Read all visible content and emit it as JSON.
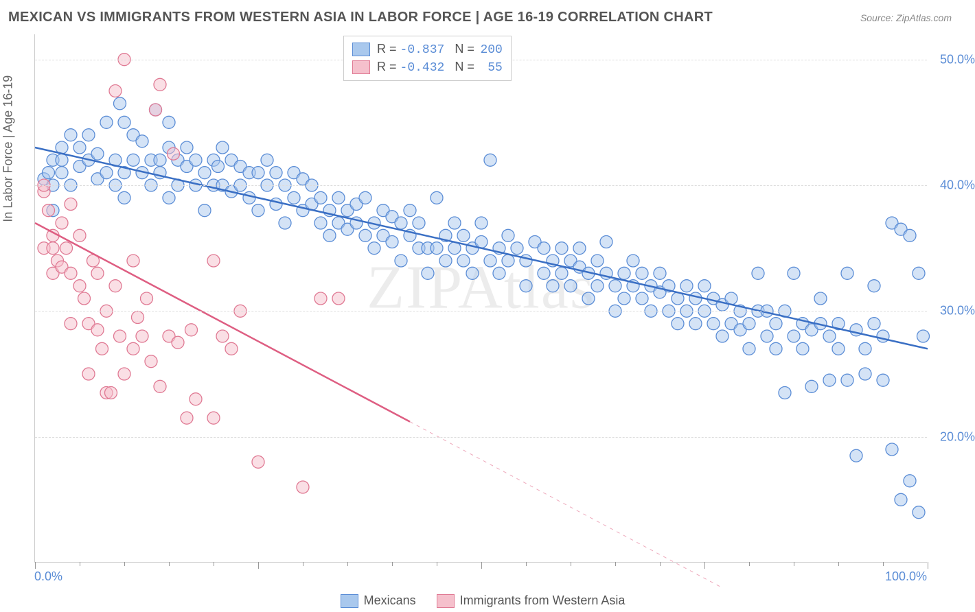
{
  "title": "MEXICAN VS IMMIGRANTS FROM WESTERN ASIA IN LABOR FORCE | AGE 16-19 CORRELATION CHART",
  "source": "Source: ZipAtlas.com",
  "watermark": "ZIPAtlas",
  "ylabel": "In Labor Force | Age 16-19",
  "chart": {
    "type": "scatter",
    "xlim": [
      0,
      100
    ],
    "ylim": [
      10,
      52
    ],
    "ytick_values": [
      20,
      30,
      40,
      50
    ],
    "ytick_labels": [
      "20.0%",
      "30.0%",
      "40.0%",
      "50.0%"
    ],
    "xaxis_left_label": "0.0%",
    "xaxis_right_label": "100.0%",
    "xtick_positions": [
      0,
      5,
      10,
      15,
      20,
      25,
      30,
      35,
      40,
      45,
      50,
      55,
      60,
      65,
      70,
      75,
      80,
      85,
      90,
      95,
      100
    ],
    "xtick_major": [
      0,
      25,
      50,
      75,
      100
    ],
    "background_color": "#ffffff",
    "grid_color": "#dddddd",
    "marker_radius": 9,
    "marker_opacity": 0.5,
    "line_width": 2.5,
    "series": [
      {
        "name": "Mexicans",
        "color_fill": "#a9c8ed",
        "color_stroke": "#5b8dd6",
        "line_color": "#3a6fc4",
        "R": "-0.837",
        "N": "200",
        "trend": {
          "x1": 0,
          "y1": 43.0,
          "x2": 100,
          "y2": 27.0
        },
        "points": [
          [
            1,
            40.5
          ],
          [
            1.5,
            41
          ],
          [
            2,
            42
          ],
          [
            2,
            40
          ],
          [
            2,
            38
          ],
          [
            3,
            43
          ],
          [
            3,
            41
          ],
          [
            3,
            42
          ],
          [
            4,
            44
          ],
          [
            4,
            40
          ],
          [
            5,
            41.5
          ],
          [
            5,
            43
          ],
          [
            6,
            42
          ],
          [
            6,
            44
          ],
          [
            7,
            42.5
          ],
          [
            7,
            40.5
          ],
          [
            8,
            41
          ],
          [
            8,
            45
          ],
          [
            9,
            42
          ],
          [
            9,
            40
          ],
          [
            9.5,
            46.5
          ],
          [
            10,
            41
          ],
          [
            10,
            45
          ],
          [
            10,
            39
          ],
          [
            11,
            42
          ],
          [
            11,
            44
          ],
          [
            12,
            41
          ],
          [
            12,
            43.5
          ],
          [
            13,
            42
          ],
          [
            13,
            40
          ],
          [
            13.5,
            46
          ],
          [
            14,
            42
          ],
          [
            14,
            41
          ],
          [
            15,
            43
          ],
          [
            15,
            39
          ],
          [
            15,
            45
          ],
          [
            16,
            42
          ],
          [
            16,
            40
          ],
          [
            17,
            41.5
          ],
          [
            17,
            43
          ],
          [
            18,
            40
          ],
          [
            18,
            42
          ],
          [
            19,
            41
          ],
          [
            19,
            38
          ],
          [
            20,
            42
          ],
          [
            20,
            40
          ],
          [
            20.5,
            41.5
          ],
          [
            21,
            40
          ],
          [
            21,
            43
          ],
          [
            22,
            42
          ],
          [
            22,
            39.5
          ],
          [
            23,
            40
          ],
          [
            23,
            41.5
          ],
          [
            24,
            39
          ],
          [
            24,
            41
          ],
          [
            25,
            41
          ],
          [
            25,
            38
          ],
          [
            26,
            40
          ],
          [
            26,
            42
          ],
          [
            27,
            38.5
          ],
          [
            27,
            41
          ],
          [
            28,
            40
          ],
          [
            28,
            37
          ],
          [
            29,
            39
          ],
          [
            29,
            41
          ],
          [
            30,
            38
          ],
          [
            30,
            40.5
          ],
          [
            31,
            38.5
          ],
          [
            31,
            40
          ],
          [
            32,
            37
          ],
          [
            32,
            39
          ],
          [
            33,
            38
          ],
          [
            33,
            36
          ],
          [
            34,
            39
          ],
          [
            34,
            37
          ],
          [
            35,
            38
          ],
          [
            35,
            36.5
          ],
          [
            36,
            38.5
          ],
          [
            36,
            37
          ],
          [
            37,
            36
          ],
          [
            37,
            39
          ],
          [
            38,
            37
          ],
          [
            38,
            35
          ],
          [
            39,
            38
          ],
          [
            39,
            36
          ],
          [
            40,
            37.5
          ],
          [
            40,
            35.5
          ],
          [
            41,
            37
          ],
          [
            41,
            34
          ],
          [
            42,
            36
          ],
          [
            42,
            38
          ],
          [
            43,
            35
          ],
          [
            43,
            37
          ],
          [
            44,
            35
          ],
          [
            44,
            33
          ],
          [
            45,
            39
          ],
          [
            45,
            35
          ],
          [
            46,
            36
          ],
          [
            46,
            34
          ],
          [
            47,
            35
          ],
          [
            47,
            37
          ],
          [
            48,
            34
          ],
          [
            48,
            36
          ],
          [
            49,
            35
          ],
          [
            49,
            33
          ],
          [
            50,
            35.5
          ],
          [
            50,
            37
          ],
          [
            51,
            34
          ],
          [
            51,
            42
          ],
          [
            52,
            35
          ],
          [
            52,
            33
          ],
          [
            53,
            36
          ],
          [
            53,
            34
          ],
          [
            54,
            35
          ],
          [
            55,
            34
          ],
          [
            55,
            32
          ],
          [
            56,
            35.5
          ],
          [
            57,
            33
          ],
          [
            57,
            35
          ],
          [
            58,
            34
          ],
          [
            58,
            32
          ],
          [
            59,
            35
          ],
          [
            59,
            33
          ],
          [
            60,
            34
          ],
          [
            60,
            32
          ],
          [
            61,
            33.5
          ],
          [
            61,
            35
          ],
          [
            62,
            33
          ],
          [
            62,
            31
          ],
          [
            63,
            34
          ],
          [
            63,
            32
          ],
          [
            64,
            33
          ],
          [
            64,
            35.5
          ],
          [
            65,
            32
          ],
          [
            65,
            30
          ],
          [
            66,
            33
          ],
          [
            66,
            31
          ],
          [
            67,
            32
          ],
          [
            67,
            34
          ],
          [
            68,
            31
          ],
          [
            68,
            33
          ],
          [
            69,
            32
          ],
          [
            69,
            30
          ],
          [
            70,
            31.5
          ],
          [
            70,
            33
          ],
          [
            71,
            30
          ],
          [
            71,
            32
          ],
          [
            72,
            31
          ],
          [
            72,
            29
          ],
          [
            73,
            32
          ],
          [
            73,
            30
          ],
          [
            74,
            31
          ],
          [
            74,
            29
          ],
          [
            75,
            30
          ],
          [
            75,
            32
          ],
          [
            76,
            29
          ],
          [
            76,
            31
          ],
          [
            77,
            30.5
          ],
          [
            77,
            28
          ],
          [
            78,
            29
          ],
          [
            78,
            31
          ],
          [
            79,
            28.5
          ],
          [
            79,
            30
          ],
          [
            80,
            29
          ],
          [
            80,
            27
          ],
          [
            81,
            30
          ],
          [
            81,
            33
          ],
          [
            82,
            28
          ],
          [
            82,
            30
          ],
          [
            83,
            29
          ],
          [
            83,
            27
          ],
          [
            84,
            30
          ],
          [
            84,
            23.5
          ],
          [
            85,
            28
          ],
          [
            85,
            33
          ],
          [
            86,
            27
          ],
          [
            86,
            29
          ],
          [
            87,
            28.5
          ],
          [
            87,
            24
          ],
          [
            88,
            29
          ],
          [
            88,
            31
          ],
          [
            89,
            24.5
          ],
          [
            89,
            28
          ],
          [
            90,
            27
          ],
          [
            90,
            29
          ],
          [
            91,
            24.5
          ],
          [
            91,
            33
          ],
          [
            92,
            28.5
          ],
          [
            92,
            18.5
          ],
          [
            93,
            27
          ],
          [
            93,
            25
          ],
          [
            94,
            29
          ],
          [
            94,
            32
          ],
          [
            95,
            28
          ],
          [
            95,
            24.5
          ],
          [
            96,
            37
          ],
          [
            96,
            19
          ],
          [
            97,
            36.5
          ],
          [
            97,
            15
          ],
          [
            98,
            36
          ],
          [
            98,
            16.5
          ],
          [
            99,
            33
          ],
          [
            99,
            14
          ],
          [
            99.5,
            28
          ]
        ]
      },
      {
        "name": "Immigrants from Western Asia",
        "color_fill": "#f5c0cc",
        "color_stroke": "#e07a94",
        "line_color": "#de5e82",
        "R": "-0.432",
        "N": "55",
        "trend": {
          "x1": 0,
          "y1": 37.0,
          "x2": 42,
          "y2": 21.2
        },
        "trend_dash": {
          "x1": 42,
          "y1": 21.2,
          "x2": 77,
          "y2": 8
        },
        "points": [
          [
            1,
            39.5
          ],
          [
            1,
            35
          ],
          [
            1,
            40
          ],
          [
            1.5,
            38
          ],
          [
            2,
            36
          ],
          [
            2,
            33
          ],
          [
            2,
            35
          ],
          [
            2.5,
            34
          ],
          [
            3,
            37
          ],
          [
            3,
            33.5
          ],
          [
            3.5,
            35
          ],
          [
            4,
            38.5
          ],
          [
            4,
            33
          ],
          [
            4,
            29
          ],
          [
            5,
            36
          ],
          [
            5,
            32
          ],
          [
            5.5,
            31
          ],
          [
            6,
            29
          ],
          [
            6,
            25
          ],
          [
            6.5,
            34
          ],
          [
            7,
            33
          ],
          [
            7,
            28.5
          ],
          [
            7.5,
            27
          ],
          [
            8,
            30
          ],
          [
            8,
            23.5
          ],
          [
            8.5,
            23.5
          ],
          [
            9,
            32
          ],
          [
            9,
            47.5
          ],
          [
            9.5,
            28
          ],
          [
            10,
            50
          ],
          [
            10,
            25
          ],
          [
            11,
            34
          ],
          [
            11,
            27
          ],
          [
            11.5,
            29.5
          ],
          [
            12,
            28
          ],
          [
            12.5,
            31
          ],
          [
            13,
            26
          ],
          [
            13.5,
            46
          ],
          [
            14,
            48
          ],
          [
            14,
            24
          ],
          [
            15,
            28
          ],
          [
            15.5,
            42.5
          ],
          [
            16,
            27.5
          ],
          [
            17,
            21.5
          ],
          [
            17.5,
            28.5
          ],
          [
            18,
            23
          ],
          [
            20,
            21.5
          ],
          [
            20,
            34
          ],
          [
            21,
            28
          ],
          [
            22,
            27
          ],
          [
            23,
            30
          ],
          [
            25,
            18
          ],
          [
            30,
            16
          ],
          [
            32,
            31
          ],
          [
            34,
            31
          ]
        ]
      }
    ]
  },
  "bottom_legend": [
    {
      "label": "Mexicans",
      "fill": "#a9c8ed",
      "stroke": "#5b8dd6"
    },
    {
      "label": "Immigrants from Western Asia",
      "fill": "#f5c0cc",
      "stroke": "#e07a94"
    }
  ]
}
